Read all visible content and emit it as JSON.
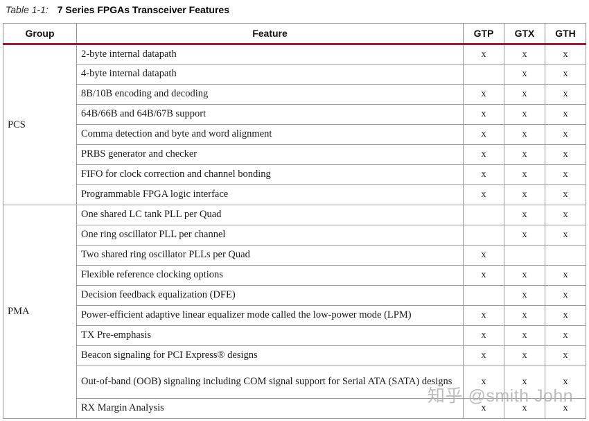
{
  "title": {
    "label": "Table 1-1:",
    "text": "7 Series FPGAs Transceiver Features"
  },
  "table": {
    "headers": {
      "group": "Group",
      "feature": "Feature",
      "gtp": "GTP",
      "gtx": "GTX",
      "gth": "GTH"
    },
    "groups": [
      {
        "name": "PCS",
        "rowspan": 8
      },
      {
        "name": "PMA",
        "rowspan": 10
      }
    ],
    "rows": [
      {
        "feature": "2-byte internal datapath",
        "gtp": "x",
        "gtx": "x",
        "gth": "x"
      },
      {
        "feature": "4-byte internal datapath",
        "gtp": "",
        "gtx": "x",
        "gth": "x"
      },
      {
        "feature": "8B/10B encoding and decoding",
        "gtp": "x",
        "gtx": "x",
        "gth": "x"
      },
      {
        "feature": "64B/66B and 64B/67B support",
        "gtp": "x",
        "gtx": "x",
        "gth": "x"
      },
      {
        "feature": "Comma detection and byte and word alignment",
        "gtp": "x",
        "gtx": "x",
        "gth": "x"
      },
      {
        "feature": "PRBS generator and checker",
        "gtp": "x",
        "gtx": "x",
        "gth": "x"
      },
      {
        "feature": "FIFO for clock correction and channel bonding",
        "gtp": "x",
        "gtx": "x",
        "gth": "x"
      },
      {
        "feature": "Programmable FPGA logic interface",
        "gtp": "x",
        "gtx": "x",
        "gth": "x"
      },
      {
        "feature": "One shared LC tank PLL per Quad",
        "gtp": "",
        "gtx": "x",
        "gth": "x"
      },
      {
        "feature": "One ring oscillator PLL per channel",
        "gtp": "",
        "gtx": "x",
        "gth": "x"
      },
      {
        "feature": "Two shared ring oscillator PLLs per Quad",
        "gtp": "x",
        "gtx": "",
        "gth": ""
      },
      {
        "feature": "Flexible reference clocking options",
        "gtp": "x",
        "gtx": "x",
        "gth": "x"
      },
      {
        "feature": "Decision feedback equalization (DFE)",
        "gtp": "",
        "gtx": "x",
        "gth": "x"
      },
      {
        "feature": "Power-efficient adaptive linear equalizer mode called the low-power mode (LPM)",
        "gtp": "x",
        "gtx": "x",
        "gth": "x"
      },
      {
        "feature": "TX Pre-emphasis",
        "gtp": "x",
        "gtx": "x",
        "gth": "x"
      },
      {
        "feature": "Beacon signaling for PCI Express® designs",
        "gtp": "x",
        "gtx": "x",
        "gth": "x"
      },
      {
        "feature": "Out-of-band (OOB) signaling including COM signal support for Serial ATA (SATA) designs",
        "gtp": "x",
        "gtx": "x",
        "gth": "x"
      },
      {
        "feature": "RX Margin Analysis",
        "gtp": "x",
        "gtx": "x",
        "gth": "x"
      }
    ]
  },
  "watermark": {
    "text": "知乎 @smith John"
  },
  "colors": {
    "header_rule": "#9e1b32",
    "border": "#9a9a9a",
    "watermark": "#adadad"
  }
}
